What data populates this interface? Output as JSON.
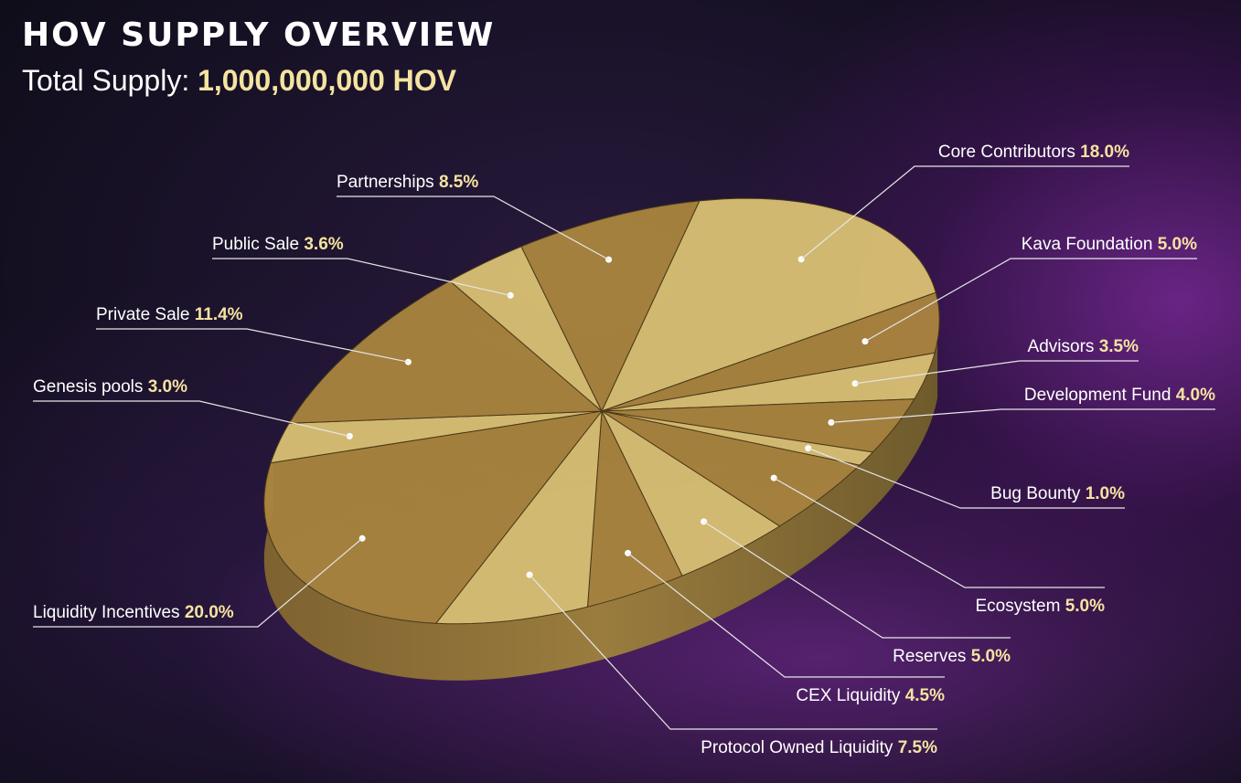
{
  "header": {
    "title": "HOV SUPPLY OVERVIEW",
    "subtitle_label": "Total Supply:",
    "subtitle_value": "1,000,000,000 HOV"
  },
  "colors": {
    "slice_light": "#d8bf72",
    "slice_dark": "#a9843e",
    "label_value": "#f5e3a0",
    "leader_line": "#e6e6e6"
  },
  "chart_data": {
    "type": "pie",
    "title": "HOV SUPPLY OVERVIEW",
    "subtitle": "Total Supply: 1,000,000,000 HOV",
    "style": "3d-tilted",
    "slices": [
      {
        "label": "Core Contributors",
        "value": 18.0,
        "display": "18.0%"
      },
      {
        "label": "Kava Foundation",
        "value": 5.0,
        "display": "5.0%"
      },
      {
        "label": "Advisors",
        "value": 3.5,
        "display": "3.5%"
      },
      {
        "label": "Development Fund",
        "value": 4.0,
        "display": "4.0%"
      },
      {
        "label": "Bug Bounty",
        "value": 1.0,
        "display": "1.0%"
      },
      {
        "label": "Ecosystem",
        "value": 5.0,
        "display": "5.0%"
      },
      {
        "label": "Reserves",
        "value": 5.0,
        "display": "5.0%"
      },
      {
        "label": "CEX Liquidity",
        "value": 4.5,
        "display": "4.5%"
      },
      {
        "label": "Protocol Owned Liquidity",
        "value": 7.5,
        "display": "7.5%"
      },
      {
        "label": "Liquidity Incentives",
        "value": 20.0,
        "display": "20.0%"
      },
      {
        "label": "Genesis pools",
        "value": 3.0,
        "display": "3.0%"
      },
      {
        "label": "Private Sale",
        "value": 11.4,
        "display": "11.4%"
      },
      {
        "label": "Public Sale",
        "value": 3.6,
        "display": "3.6%"
      },
      {
        "label": "Partnerships",
        "value": 8.5,
        "display": "8.5%"
      }
    ]
  }
}
